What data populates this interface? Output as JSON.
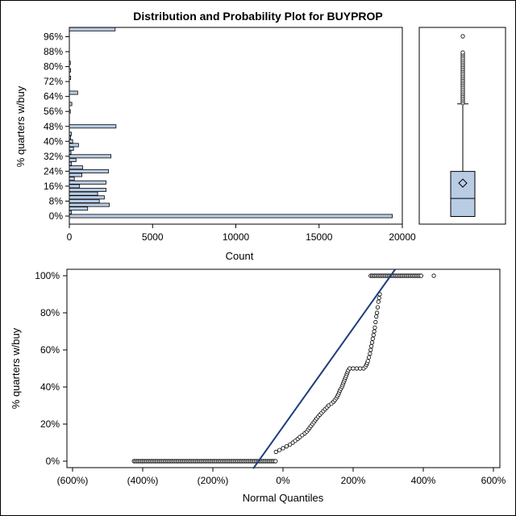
{
  "chart_data": {
    "title": "Distribution and Probability Plot for BUYPROP",
    "panels": [
      {
        "type": "bar",
        "orientation": "horizontal",
        "ylabel": "% quarters w/buy",
        "xlabel": "Count",
        "xlim": [
          0,
          20000
        ],
        "xticks": [
          0,
          5000,
          10000,
          15000,
          20000
        ],
        "yticks": [
          "0%",
          "8%",
          "16%",
          "24%",
          "32%",
          "40%",
          "48%",
          "56%",
          "64%",
          "72%",
          "80%",
          "88%",
          "96%"
        ],
        "bins": [
          {
            "y": 0,
            "count": 19400
          },
          {
            "y": 2,
            "count": 120
          },
          {
            "y": 4,
            "count": 1100
          },
          {
            "y": 6,
            "count": 2400
          },
          {
            "y": 8,
            "count": 1800
          },
          {
            "y": 10,
            "count": 2100
          },
          {
            "y": 12,
            "count": 1700
          },
          {
            "y": 14,
            "count": 2200
          },
          {
            "y": 16,
            "count": 600
          },
          {
            "y": 18,
            "count": 2200
          },
          {
            "y": 20,
            "count": 300
          },
          {
            "y": 22,
            "count": 750
          },
          {
            "y": 24,
            "count": 2350
          },
          {
            "y": 26,
            "count": 800
          },
          {
            "y": 28,
            "count": 130
          },
          {
            "y": 30,
            "count": 400
          },
          {
            "y": 32,
            "count": 2500
          },
          {
            "y": 34,
            "count": 100
          },
          {
            "y": 36,
            "count": 250
          },
          {
            "y": 38,
            "count": 550
          },
          {
            "y": 40,
            "count": 200
          },
          {
            "y": 42,
            "count": 80
          },
          {
            "y": 44,
            "count": 120
          },
          {
            "y": 48,
            "count": 2800
          },
          {
            "y": 56,
            "count": 60
          },
          {
            "y": 60,
            "count": 150
          },
          {
            "y": 66,
            "count": 500
          },
          {
            "y": 74,
            "count": 80
          },
          {
            "y": 78,
            "count": 80
          },
          {
            "y": 82,
            "count": 60
          },
          {
            "y": 100,
            "count": 2750
          }
        ],
        "color": "#b8cce4"
      },
      {
        "type": "box",
        "ylim": [
          -4,
          104
        ],
        "min": 0,
        "q1": 0,
        "median": 10,
        "mean": 18.5,
        "q3": 25,
        "whisker_high": 62.5,
        "outliers": [
          63,
          64,
          65,
          66,
          67,
          68,
          69,
          70,
          71,
          72,
          73,
          74,
          75,
          76,
          77,
          78,
          79,
          80,
          81,
          82,
          83,
          84,
          85,
          86,
          87,
          88,
          89,
          90,
          91,
          100
        ],
        "color": "#b8cce4"
      },
      {
        "type": "scatter",
        "xlabel": "Normal Quantiles",
        "ylabel": "% quarters w/buy",
        "xlim": [
          -6.2,
          6.2
        ],
        "ylim": [
          -4,
          104
        ],
        "xticks": [
          "(600%)",
          "(400%)",
          "(200%)",
          "0%",
          "200%",
          "400%",
          "600%"
        ],
        "xtick_values": [
          -6,
          -4,
          -2,
          0,
          2,
          4,
          6
        ],
        "yticks": [
          "0%",
          "20%",
          "40%",
          "60%",
          "80%",
          "100%"
        ],
        "ytick_values": [
          0,
          20,
          40,
          60,
          80,
          100
        ],
        "zero_run": [
          -4.25,
          -0.2
        ],
        "zero_isolated": [
          -4.0
        ],
        "rise_points": [
          [
            -0.2,
            5
          ],
          [
            -0.1,
            6
          ],
          [
            0.0,
            7
          ],
          [
            0.1,
            8
          ],
          [
            0.2,
            9
          ],
          [
            0.28,
            10
          ],
          [
            0.35,
            11
          ],
          [
            0.42,
            12
          ],
          [
            0.48,
            13
          ],
          [
            0.55,
            14
          ],
          [
            0.62,
            15
          ],
          [
            0.68,
            16
          ],
          [
            0.72,
            17
          ],
          [
            0.76,
            18
          ],
          [
            0.8,
            19
          ],
          [
            0.84,
            20
          ],
          [
            0.88,
            21
          ],
          [
            0.92,
            22
          ],
          [
            0.96,
            23
          ],
          [
            1.0,
            24
          ],
          [
            1.05,
            25
          ],
          [
            1.1,
            26
          ],
          [
            1.15,
            27
          ],
          [
            1.2,
            28
          ],
          [
            1.25,
            29
          ],
          [
            1.3,
            30
          ],
          [
            1.38,
            31
          ],
          [
            1.44,
            32
          ],
          [
            1.48,
            33
          ],
          [
            1.52,
            34
          ],
          [
            1.55,
            35
          ],
          [
            1.58,
            36
          ],
          [
            1.6,
            37
          ],
          [
            1.62,
            38
          ],
          [
            1.65,
            39
          ],
          [
            1.68,
            40
          ],
          [
            1.7,
            41
          ],
          [
            1.72,
            42
          ],
          [
            1.74,
            43
          ],
          [
            1.76,
            44
          ],
          [
            1.78,
            45
          ],
          [
            1.8,
            46
          ],
          [
            1.82,
            47
          ],
          [
            1.84,
            48
          ],
          [
            1.86,
            49
          ],
          [
            1.9,
            50
          ],
          [
            2.0,
            50
          ],
          [
            2.1,
            50
          ],
          [
            2.2,
            50
          ],
          [
            2.3,
            50
          ],
          [
            2.35,
            51
          ],
          [
            2.38,
            52
          ],
          [
            2.4,
            53
          ],
          [
            2.42,
            54
          ],
          [
            2.45,
            56
          ],
          [
            2.48,
            58
          ],
          [
            2.5,
            60
          ],
          [
            2.52,
            62
          ],
          [
            2.54,
            64
          ],
          [
            2.56,
            66
          ],
          [
            2.58,
            68
          ],
          [
            2.6,
            70
          ],
          [
            2.62,
            72
          ],
          [
            2.64,
            75
          ],
          [
            2.66,
            78
          ],
          [
            2.68,
            80
          ],
          [
            2.7,
            83
          ],
          [
            2.72,
            86
          ],
          [
            2.74,
            88
          ],
          [
            2.76,
            90
          ]
        ],
        "hundred_run": [
          2.5,
          3.95
        ],
        "hundred_isolated": [
          4.3
        ],
        "ref_line": [
          [
            -0.85,
            -4
          ],
          [
            3.2,
            100
          ]
        ],
        "ref_line_color": "#1f3d7a"
      }
    ]
  }
}
